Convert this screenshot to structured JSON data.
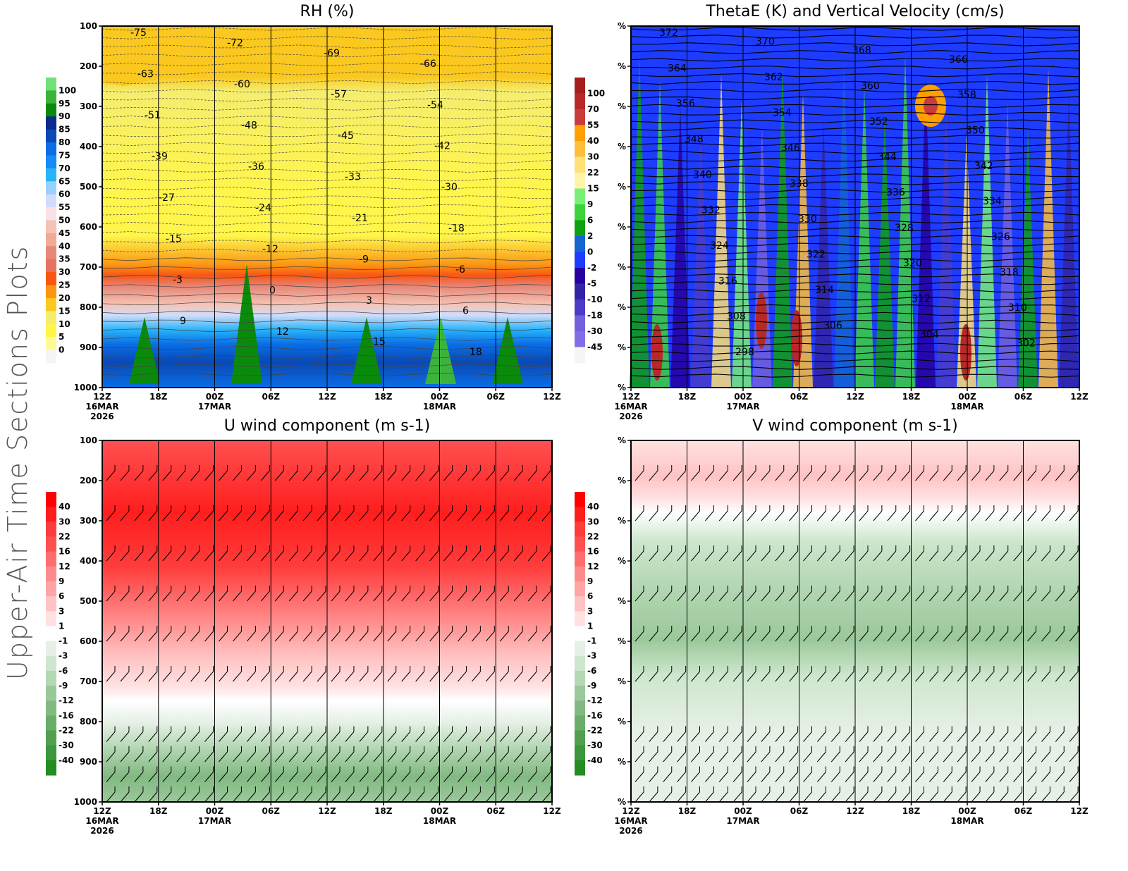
{
  "page": {
    "side_title": "Upper-Air Time Sections Plots"
  },
  "chart_data": [
    {
      "type": "heatmap",
      "title": "RH (%)",
      "xlabel": "",
      "ylabel": "",
      "x_ticks": [
        "12Z",
        "18Z",
        "00Z",
        "06Z",
        "12Z",
        "18Z",
        "00Z",
        "06Z",
        "12Z"
      ],
      "x_date_labels": [
        {
          "tick_index": 0,
          "lines": [
            "16MAR",
            "2026"
          ]
        },
        {
          "tick_index": 2,
          "lines": [
            "17MAR"
          ]
        },
        {
          "tick_index": 6,
          "lines": [
            "18MAR"
          ]
        }
      ],
      "y_ticks": [
        "100",
        "200",
        "300",
        "400",
        "500",
        "600",
        "700",
        "800",
        "900",
        "1000"
      ],
      "ylim": [
        100,
        1000
      ],
      "grid": "vertical lines at each time tick",
      "colorbar": {
        "position": "left",
        "labels": [
          "100",
          "95",
          "90",
          "85",
          "80",
          "75",
          "70",
          "65",
          "60",
          "55",
          "50",
          "45",
          "40",
          "35",
          "30",
          "25",
          "20",
          "15",
          "10",
          "5",
          "0"
        ],
        "colors": [
          "#74e078",
          "#3cb43c",
          "#0a8a0a",
          "#0a2a8c",
          "#0a48b4",
          "#0a6ee6",
          "#148cf5",
          "#28b4fa",
          "#96d2fa",
          "#d2dcfa",
          "#fae1e6",
          "#f5c3b4",
          "#f0aa96",
          "#e68778",
          "#e6735f",
          "#fa5514",
          "#fa9614",
          "#fac81e",
          "#f5ed6e",
          "#fff54b",
          "#fffa96",
          "#f5f5f5"
        ]
      },
      "contour_labels": {
        "temperature_C": [
          "-75",
          "-72",
          "-69",
          "-66",
          "-63",
          "-60",
          "-57",
          "-54",
          "-51",
          "-48",
          "-45",
          "-42",
          "-39",
          "-36",
          "-33",
          "-30",
          "-27",
          "-24",
          "-21",
          "-18",
          "-15",
          "-12",
          "-9",
          "-6",
          "-3",
          "0",
          "3",
          "6",
          "9",
          "12",
          "15",
          "18"
        ]
      }
    },
    {
      "type": "heatmap",
      "title": "ThetaE (K) and Vertical Velocity (cm/s)",
      "x_ticks": [
        "12Z",
        "18Z",
        "00Z",
        "06Z",
        "12Z",
        "18Z",
        "00Z",
        "06Z",
        "12Z"
      ],
      "x_date_labels": [
        {
          "tick_index": 0,
          "lines": [
            "16MAR",
            "2026"
          ]
        },
        {
          "tick_index": 2,
          "lines": [
            "17MAR"
          ]
        },
        {
          "tick_index": 6,
          "lines": [
            "18MAR"
          ]
        }
      ],
      "y_ticks": [
        "%",
        "%",
        "%",
        "%",
        "%",
        "%",
        "%",
        "%",
        "%",
        "%"
      ],
      "colorbar": {
        "position": "left",
        "labels": [
          "100",
          "70",
          "55",
          "40",
          "30",
          "22",
          "15",
          "9",
          "6",
          "2",
          "0",
          "-2",
          "-5",
          "-10",
          "-18",
          "-30",
          "-45"
        ],
        "colors": [
          "#a51e1e",
          "#b92828",
          "#c83c3c",
          "#ff9f00",
          "#ffbf3c",
          "#ffe178",
          "#fff5aa",
          "#78f078",
          "#3cd23c",
          "#0fa00f",
          "#1464d2",
          "#1e3cff",
          "#2800a0",
          "#3223a5",
          "#4b3cc8",
          "#7360dc",
          "#826ee6",
          "#f5f5f5"
        ]
      },
      "contour_labels": {
        "thetaE_K": [
          "372",
          "370",
          "368",
          "366",
          "364",
          "362",
          "360",
          "358",
          "356",
          "354",
          "352",
          "350",
          "348",
          "346",
          "344",
          "342",
          "340",
          "338",
          "336",
          "334",
          "332",
          "330",
          "328",
          "326",
          "324",
          "322",
          "320",
          "318",
          "316",
          "314",
          "312",
          "310",
          "308",
          "306",
          "304",
          "302",
          "298"
        ]
      }
    },
    {
      "type": "heatmap",
      "title": "U wind component (m s-1)",
      "x_ticks": [
        "12Z",
        "18Z",
        "00Z",
        "06Z",
        "12Z",
        "18Z",
        "00Z",
        "06Z",
        "12Z"
      ],
      "x_date_labels": [
        {
          "tick_index": 0,
          "lines": [
            "16MAR",
            "2026"
          ]
        },
        {
          "tick_index": 2,
          "lines": [
            "17MAR"
          ]
        },
        {
          "tick_index": 6,
          "lines": [
            "18MAR"
          ]
        }
      ],
      "y_ticks": [
        "100",
        "200",
        "300",
        "400",
        "500",
        "600",
        "700",
        "800",
        "900",
        "1000"
      ],
      "ylim": [
        100,
        1000
      ],
      "wind_barb_levels": [
        200,
        300,
        400,
        500,
        600,
        700,
        850,
        900,
        950,
        1000
      ],
      "colorbar": {
        "position": "left",
        "labels": [
          "40",
          "30",
          "22",
          "16",
          "12",
          "9",
          "6",
          "3",
          "1",
          "-1",
          "-3",
          "-6",
          "-9",
          "-12",
          "-16",
          "-22",
          "-30",
          "-40"
        ],
        "colors": [
          "#ff0000",
          "#ff1e1e",
          "#ff3c3c",
          "#ff5050",
          "#ff6e6e",
          "#ff8c8c",
          "#ffa5a5",
          "#ffc3c3",
          "#ffe1e1",
          "#ffffff",
          "#e6f0e6",
          "#cde6cd",
          "#b4d7b4",
          "#9bc89b",
          "#82b982",
          "#69ad69",
          "#50a050",
          "#3c963c",
          "#238c23"
        ]
      }
    },
    {
      "type": "heatmap",
      "title": "V wind component (m s-1)",
      "x_ticks": [
        "12Z",
        "18Z",
        "00Z",
        "06Z",
        "12Z",
        "18Z",
        "00Z",
        "06Z",
        "12Z"
      ],
      "x_date_labels": [
        {
          "tick_index": 0,
          "lines": [
            "16MAR",
            "2026"
          ]
        },
        {
          "tick_index": 2,
          "lines": [
            "17MAR"
          ]
        },
        {
          "tick_index": 6,
          "lines": [
            "18MAR"
          ]
        }
      ],
      "y_ticks": [
        "%",
        "%",
        "%",
        "%",
        "%",
        "%",
        "%",
        "%",
        "%",
        "%"
      ],
      "wind_barb_levels": [
        200,
        300,
        400,
        500,
        600,
        700,
        850,
        900,
        950,
        1000
      ],
      "colorbar": {
        "position": "left",
        "labels": [
          "40",
          "30",
          "22",
          "16",
          "12",
          "9",
          "6",
          "3",
          "1",
          "-1",
          "-3",
          "-6",
          "-9",
          "-12",
          "-16",
          "-22",
          "-30",
          "-40"
        ],
        "colors": [
          "#ff0000",
          "#ff1e1e",
          "#ff3c3c",
          "#ff5050",
          "#ff6e6e",
          "#ff8c8c",
          "#ffa5a5",
          "#ffc3c3",
          "#ffe1e1",
          "#ffffff",
          "#e6f0e6",
          "#cde6cd",
          "#b4d7b4",
          "#9bc89b",
          "#82b982",
          "#69ad69",
          "#50a050",
          "#3c963c",
          "#238c23"
        ]
      }
    }
  ]
}
